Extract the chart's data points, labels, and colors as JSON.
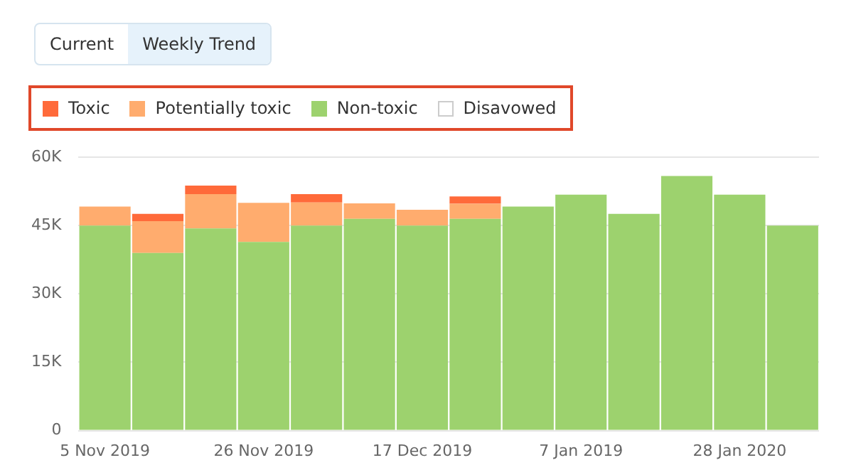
{
  "chart_data": {
    "type": "bar",
    "stacked": true,
    "legend": "top left",
    "grid": "y",
    "annotations": [
      "Current",
      "Weekly Trend"
    ],
    "categories": [
      "5 Nov 2019",
      null,
      null,
      "26 Nov 2019",
      null,
      null,
      "17 Dec 2019",
      null,
      null,
      "7 Jan 2019",
      null,
      null,
      "28 Jan 2020",
      null
    ],
    "ylim": [
      0,
      60000
    ],
    "yticks": [
      {
        "value": 0,
        "label": "0"
      },
      {
        "value": 15000,
        "label": "15K"
      },
      {
        "value": 30000,
        "label": "30K"
      },
      {
        "value": 45000,
        "label": "45K"
      },
      {
        "value": 60000,
        "label": "60K"
      }
    ],
    "series": [
      {
        "name": "Non-toxic",
        "color": "#9dd26e",
        "values": [
          45000,
          39000,
          44400,
          41400,
          45000,
          46500,
          45000,
          46500,
          49200,
          51800,
          47600,
          55900,
          51800,
          45000
        ]
      },
      {
        "name": "Potentially toxic",
        "color": "#ffac6e",
        "values": [
          4200,
          7000,
          7500,
          8600,
          5100,
          3400,
          3500,
          3300,
          null,
          null,
          null,
          null,
          null,
          null
        ]
      },
      {
        "name": "Toxic",
        "color": "#ff6a3a",
        "values": [
          null,
          1600,
          1900,
          null,
          1800,
          null,
          null,
          1600,
          null,
          null,
          null,
          null,
          null,
          null
        ]
      },
      {
        "name": "Disavowed",
        "color": "#ffffff",
        "values": [
          null,
          null,
          null,
          null,
          null,
          null,
          null,
          null,
          null,
          null,
          null,
          null,
          null,
          null
        ]
      }
    ]
  }
}
